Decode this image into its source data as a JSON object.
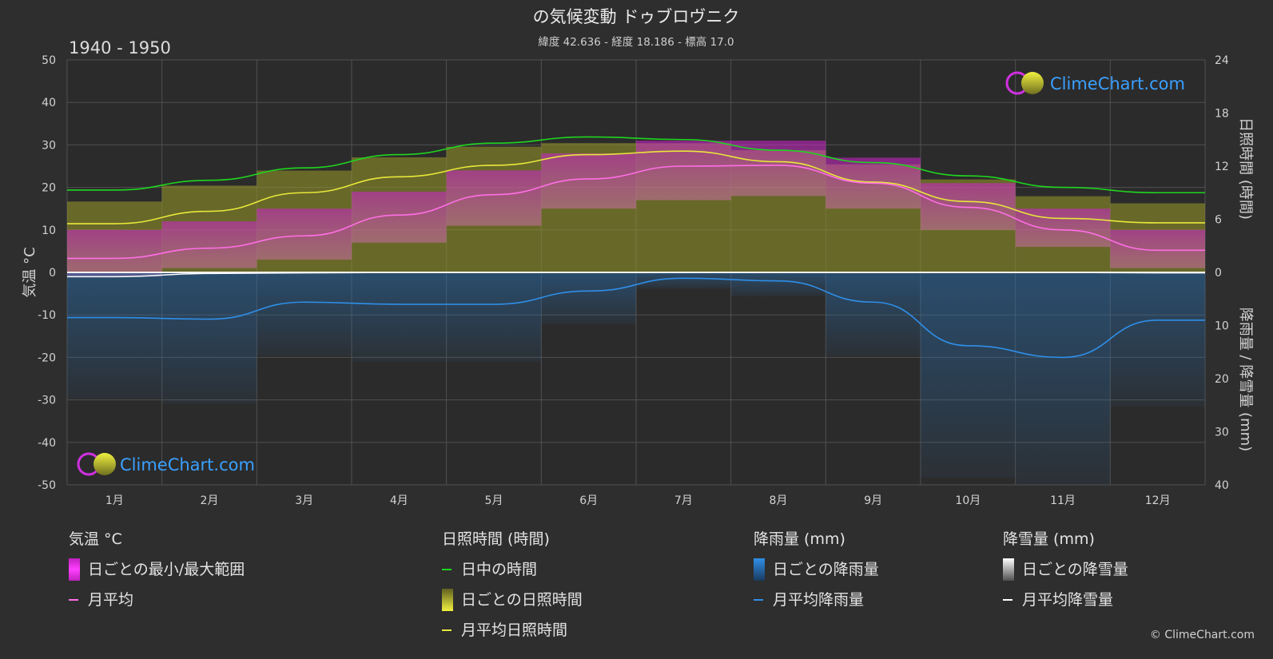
{
  "header": {
    "title": "の気候変動 ドゥブロヴニク",
    "subtitle": "緯度 42.636 - 経度 18.186 - 標高 17.0",
    "period": "1940 - 1950"
  },
  "brand": {
    "name": "ClimeChart.com",
    "copyright": "© ClimeChart.com"
  },
  "chart_data": {
    "type": "line",
    "categories": [
      "1月",
      "2月",
      "3月",
      "4月",
      "5月",
      "6月",
      "7月",
      "8月",
      "9月",
      "10月",
      "11月",
      "12月"
    ],
    "axes": {
      "left": {
        "label": "気温 °C",
        "min": -50,
        "max": 50,
        "ticks": [
          50,
          40,
          30,
          20,
          10,
          0,
          -10,
          -20,
          -30,
          -40,
          -50
        ]
      },
      "right_top": {
        "label": "日照時間 (時間)",
        "min": 0,
        "max": 24,
        "ticks": [
          24,
          18,
          12,
          6,
          0
        ]
      },
      "right_bottom": {
        "label": "降雨量 / 降雪量 (mm)",
        "min": 0,
        "max": 40,
        "ticks": [
          10,
          20,
          30,
          40
        ]
      }
    },
    "grid": true,
    "series": [
      {
        "name": "日中の時間",
        "axis": "sunshine_hours",
        "color": "#1fd61f",
        "values": [
          9.3,
          10.4,
          11.8,
          13.3,
          14.6,
          15.3,
          15.0,
          13.8,
          12.4,
          10.9,
          9.6,
          9.0
        ]
      },
      {
        "name": "月平均日照時間",
        "axis": "sunshine_hours",
        "color": "#e8e83a",
        "values": [
          5.5,
          6.9,
          9.0,
          10.8,
          12.1,
          13.3,
          13.7,
          12.5,
          10.2,
          8.0,
          6.1,
          5.6
        ]
      },
      {
        "name": "月平均",
        "axis": "temperature_c",
        "color": "#ff6ee6",
        "values": [
          3.3,
          5.7,
          8.6,
          13.5,
          18.3,
          22.0,
          25.0,
          25.2,
          21.0,
          15.3,
          10.0,
          5.2
        ]
      },
      {
        "name": "月平均降雨量",
        "axis": "precipitation_mm",
        "color": "#2f8fe8",
        "values": [
          8.5,
          8.8,
          5.6,
          6.0,
          6.0,
          3.5,
          1.1,
          1.6,
          5.6,
          13.8,
          16.0,
          9.0
        ]
      },
      {
        "name": "月平均降雪量",
        "axis": "precipitation_mm",
        "color": "#ffffff",
        "values": [
          0.8,
          0.2,
          0.1,
          0.0,
          0.0,
          0.0,
          0.0,
          0.0,
          0.0,
          0.0,
          0.0,
          0.1
        ]
      }
    ],
    "ranges": {
      "daily_temp_min_max": {
        "color": "#e020e0",
        "min": [
          -1,
          1,
          3,
          7,
          11,
          15,
          17,
          18,
          15,
          10,
          6,
          1
        ],
        "max": [
          10,
          12,
          15,
          19,
          24,
          28,
          31,
          31,
          27,
          21,
          15,
          10
        ]
      },
      "daily_sunshine_hours": {
        "color": "#a8a830",
        "values": [
          8.0,
          9.8,
          11.5,
          13.0,
          14.2,
          14.6,
          14.6,
          13.8,
          12.2,
          10.5,
          8.6,
          7.8
        ]
      }
    }
  },
  "legend": {
    "groups": [
      {
        "title": "気温 °C",
        "items": [
          {
            "kind": "box",
            "label": "日ごとの最小/最大範囲",
            "color": "#e020e0"
          },
          {
            "kind": "line",
            "label": "月平均",
            "color": "#ff6ee6"
          }
        ]
      },
      {
        "title": "日照時間 (時間)",
        "items": [
          {
            "kind": "line",
            "label": "日中の時間",
            "color": "#1fd61f"
          },
          {
            "kind": "box",
            "label": "日ごとの日照時間",
            "color": "#c8c83a"
          },
          {
            "kind": "line",
            "label": "月平均日照時間",
            "color": "#e8e83a"
          }
        ]
      },
      {
        "title": "降雨量 (mm)",
        "items": [
          {
            "kind": "box",
            "label": "日ごとの降雨量",
            "color": "#2f8fe8"
          },
          {
            "kind": "line",
            "label": "月平均降雨量",
            "color": "#2f8fe8"
          }
        ]
      },
      {
        "title": "降雪量 (mm)",
        "items": [
          {
            "kind": "box",
            "label": "日ごとの降雪量",
            "color": "#dddddd"
          },
          {
            "kind": "line",
            "label": "月平均降雪量",
            "color": "#ffffff"
          }
        ]
      }
    ]
  }
}
